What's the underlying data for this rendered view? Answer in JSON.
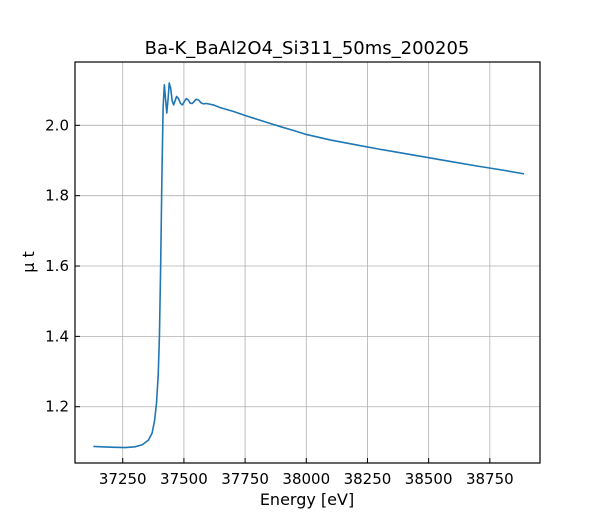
{
  "chart_data": {
    "type": "line",
    "title": "Ba-K_BaAl2O4_Si311_50ms_200205",
    "xlabel": "Energy [eV]",
    "ylabel": "μ t",
    "xlim": [
      37055,
      38955
    ],
    "ylim": [
      1.04,
      2.18
    ],
    "xticks": [
      37250,
      37500,
      37750,
      38000,
      38250,
      38500,
      38750
    ],
    "xtick_labels": [
      "37250",
      "37500",
      "37750",
      "38000",
      "38250",
      "38500",
      "38750"
    ],
    "yticks": [
      1.2,
      1.4,
      1.6,
      1.8,
      2.0
    ],
    "ytick_labels": [
      "1.2",
      "1.4",
      "1.6",
      "1.8",
      "2.0"
    ],
    "grid": true,
    "color": "#1f77b4",
    "series": [
      {
        "x": [
          37130,
          37200,
          37260,
          37300,
          37330,
          37355,
          37370,
          37380,
          37388,
          37395,
          37400,
          37405,
          37410,
          37415,
          37420,
          37425,
          37430,
          37436,
          37440,
          37446,
          37452,
          37458,
          37464,
          37470,
          37478,
          37486,
          37494,
          37502,
          37510,
          37518,
          37526,
          37534,
          37542,
          37550,
          37560,
          37570,
          37580,
          37590,
          37600,
          37620,
          37650,
          37700,
          37750,
          37800,
          37850,
          37900,
          37950,
          38000,
          38100,
          38200,
          38300,
          38400,
          38500,
          38600,
          38700,
          38800,
          38890
        ],
        "y": [
          1.087,
          1.085,
          1.084,
          1.086,
          1.092,
          1.105,
          1.125,
          1.16,
          1.21,
          1.29,
          1.4,
          1.6,
          1.85,
          2.05,
          2.115,
          2.075,
          2.035,
          2.08,
          2.12,
          2.105,
          2.07,
          2.058,
          2.07,
          2.082,
          2.076,
          2.062,
          2.058,
          2.068,
          2.076,
          2.072,
          2.063,
          2.062,
          2.068,
          2.074,
          2.072,
          2.064,
          2.061,
          2.062,
          2.061,
          2.058,
          2.05,
          2.04,
          2.028,
          2.017,
          2.006,
          1.995,
          1.985,
          1.974,
          1.958,
          1.945,
          1.932,
          1.92,
          1.908,
          1.896,
          1.884,
          1.873,
          1.862
        ]
      }
    ]
  }
}
